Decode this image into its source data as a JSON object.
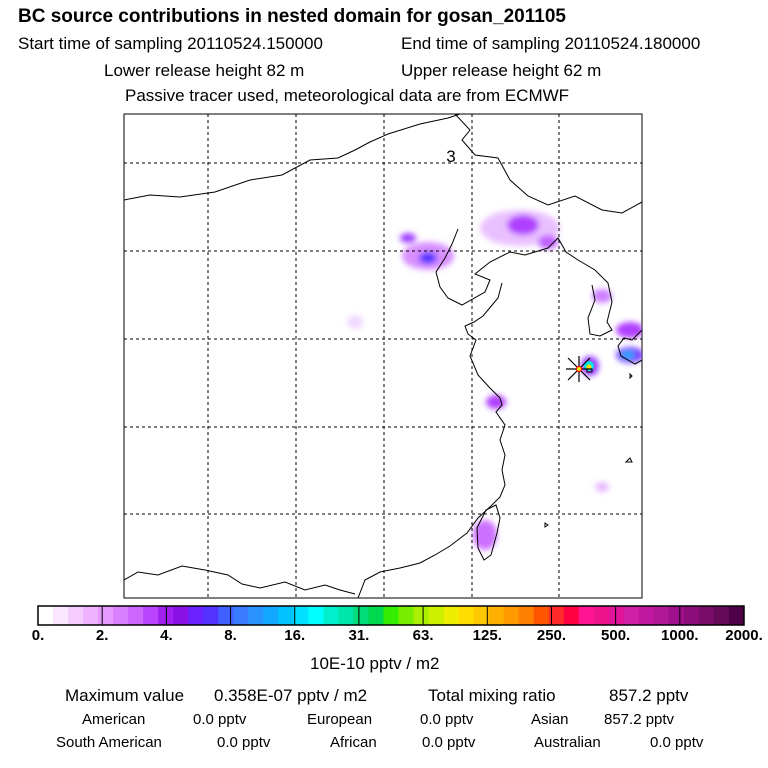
{
  "header": {
    "title": "BC  source contributions in nested domain for gosan_201105",
    "start_time": "Start time of sampling 20110524.150000",
    "end_time": "End time of sampling 20110524.180000",
    "lower_release": "Lower release height   82 m",
    "upper_release": "Upper release height   62 m",
    "tracer_note": "Passive tracer used, meteorological data are from ECMWF"
  },
  "chart_data": {
    "type": "heatmap",
    "panel_label": "3",
    "colorbar": {
      "tick_labels": [
        "0.",
        "2.",
        "4.",
        "8.",
        "16.",
        "31.",
        "63.",
        "125.",
        "250.",
        "500.",
        "1000.",
        "2000."
      ],
      "colors": [
        "#ffffff",
        "#fbe6ff",
        "#f5ccff",
        "#eeb2ff",
        "#e699ff",
        "#d980ff",
        "#cc66ff",
        "#bb44ff",
        "#a020f0",
        "#8c10e8",
        "#6a22ff",
        "#5533ff",
        "#4060ff",
        "#3a7bff",
        "#2b93ff",
        "#13a8ff",
        "#00c3ff",
        "#00e0ff",
        "#00ffff",
        "#00f0cc",
        "#00e6aa",
        "#00dd77",
        "#00d94d",
        "#33ee00",
        "#77ee00",
        "#aaf000",
        "#ccf000",
        "#eeee00",
        "#ffdd00",
        "#ffc800",
        "#ffb000",
        "#ff9a00",
        "#ff7f00",
        "#ff5500",
        "#ff2a2a",
        "#ff0040",
        "#ff1493",
        "#f0148c",
        "#e0149a",
        "#d020a8",
        "#c018a0",
        "#b01896",
        "#a0108c",
        "#8c0c7c",
        "#780a6a",
        "#640858",
        "#500048"
      ],
      "unit_label": "10E-10 pptv / m2"
    },
    "receptor_marker": "Gosan"
  },
  "summary": {
    "max_label": "Maximum value",
    "max_value": "0.358E-07 pptv / m2",
    "total_label": "Total mixing ratio",
    "total_value": "857.2 pptv"
  },
  "contributions": [
    {
      "region": "American",
      "value": "0.0 pptv"
    },
    {
      "region": "European",
      "value": "0.0 pptv"
    },
    {
      "region": "Asian",
      "value": "857.2 pptv"
    },
    {
      "region": "South American",
      "value": "0.0 pptv"
    },
    {
      "region": "African",
      "value": "0.0 pptv"
    },
    {
      "region": "Australian",
      "value": "0.0 pptv"
    }
  ]
}
